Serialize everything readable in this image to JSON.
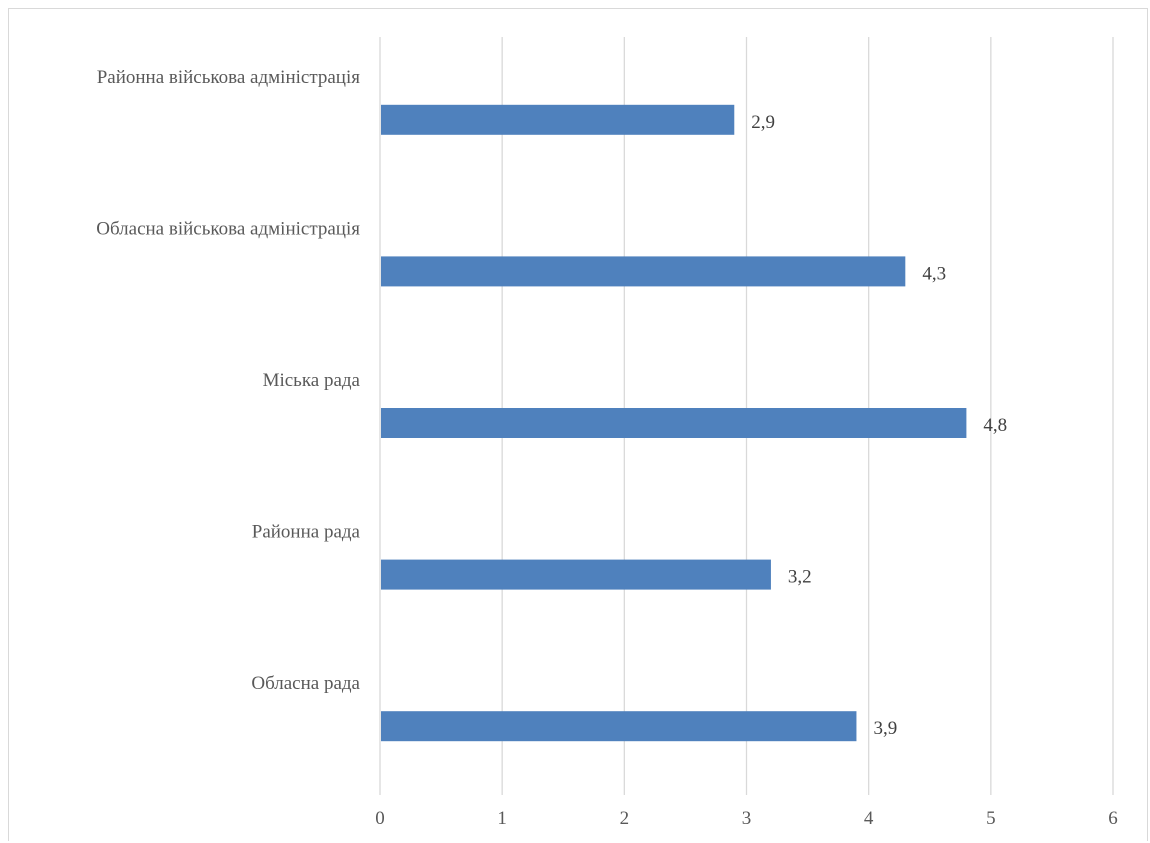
{
  "chart_data": {
    "type": "bar",
    "orientation": "horizontal",
    "categories": [
      "Районна військова адміністрація",
      "Обласна військова адміністрація",
      "Міська рада",
      "Районна рада",
      "Обласна рада"
    ],
    "values": [
      2.9,
      4.3,
      4.8,
      3.2,
      3.9
    ],
    "data_labels": [
      "2,9",
      "4,3",
      "4,8",
      "3,2",
      "3,9"
    ],
    "xlim": [
      0,
      6
    ],
    "x_ticks": [
      0,
      1,
      2,
      3,
      4,
      5,
      6
    ],
    "x_tick_labels": [
      "0",
      "1",
      "2",
      "3",
      "4",
      "5",
      "6"
    ],
    "title": "",
    "xlabel": "",
    "ylabel": "",
    "grid": "vertical",
    "legend": "none",
    "colors": {
      "bar": "#4f81bd",
      "grid": "#d9d9d9",
      "axis_text": "#595959",
      "label_text": "#404040"
    }
  }
}
